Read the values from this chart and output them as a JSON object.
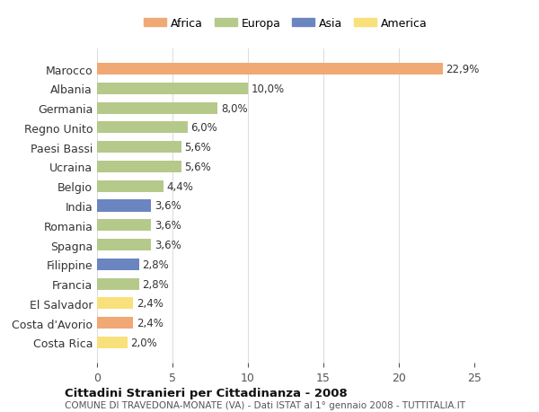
{
  "countries": [
    "Costa Rica",
    "Costa d'Avorio",
    "El Salvador",
    "Francia",
    "Filippine",
    "Spagna",
    "Romania",
    "India",
    "Belgio",
    "Ucraina",
    "Paesi Bassi",
    "Regno Unito",
    "Germania",
    "Albania",
    "Marocco"
  ],
  "values": [
    2.0,
    2.4,
    2.4,
    2.8,
    2.8,
    3.6,
    3.6,
    3.6,
    4.4,
    5.6,
    5.6,
    6.0,
    8.0,
    10.0,
    22.9
  ],
  "labels": [
    "2,0%",
    "2,4%",
    "2,4%",
    "2,8%",
    "2,8%",
    "3,6%",
    "3,6%",
    "3,6%",
    "4,4%",
    "5,6%",
    "5,6%",
    "6,0%",
    "8,0%",
    "10,0%",
    "22,9%"
  ],
  "colors": [
    "#f9e07a",
    "#f0a875",
    "#f9e07a",
    "#b5c98a",
    "#6b85c0",
    "#b5c98a",
    "#b5c98a",
    "#6b85c0",
    "#b5c98a",
    "#b5c98a",
    "#b5c98a",
    "#b5c98a",
    "#b5c98a",
    "#b5c98a",
    "#f0a875"
  ],
  "continents": [
    "America",
    "Africa",
    "America",
    "Europa",
    "Asia",
    "Europa",
    "Europa",
    "Asia",
    "Europa",
    "Europa",
    "Europa",
    "Europa",
    "Europa",
    "Europa",
    "Africa"
  ],
  "legend_labels": [
    "Africa",
    "Europa",
    "Asia",
    "America"
  ],
  "legend_colors": [
    "#f0a875",
    "#b5c98a",
    "#6b85c0",
    "#f9e07a"
  ],
  "title_bold": "Cittadini Stranieri per Cittadinanza - 2008",
  "subtitle": "COMUNE DI TRAVEDONA-MONATE (VA) - Dati ISTAT al 1° gennaio 2008 - TUTTITALIA.IT",
  "xlim": [
    0,
    25
  ],
  "xticks": [
    0,
    5,
    10,
    15,
    20,
    25
  ],
  "background_color": "#ffffff",
  "bar_label_fontsize": 8.5,
  "ytick_fontsize": 9,
  "xtick_fontsize": 9,
  "grid_color": "#dddddd"
}
